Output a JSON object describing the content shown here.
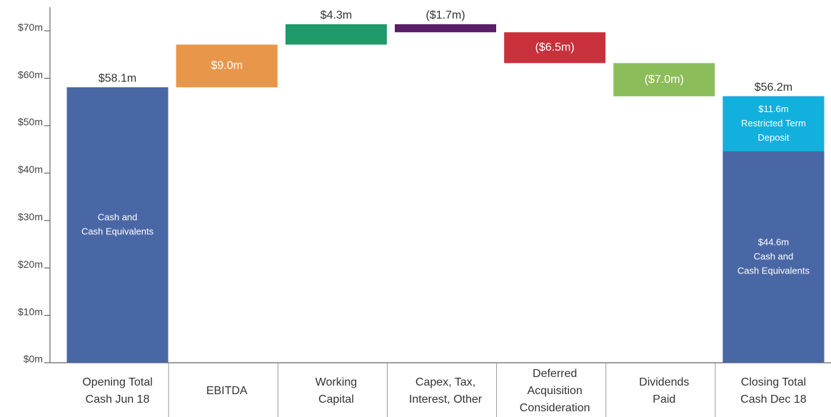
{
  "chart_data": {
    "type": "waterfall",
    "categories": [
      [
        "Opening Total",
        "Cash Jun 18"
      ],
      [
        "EBITDA"
      ],
      [
        "Working",
        "Capital"
      ],
      [
        "Capex, Tax,",
        "Interest, Other"
      ],
      [
        "Deferred",
        "Acquisition",
        "Consideration"
      ],
      [
        "Dividends",
        "Paid"
      ],
      [
        "Closing Total",
        "Cash Dec 18"
      ]
    ],
    "measure": [
      "total",
      "relative",
      "relative",
      "relative",
      "relative",
      "relative",
      "total"
    ],
    "values": [
      58.1,
      9.0,
      4.3,
      -1.7,
      -6.5,
      -7.0,
      56.2
    ],
    "value_labels": [
      "$58.1m",
      "$9.0m",
      "$4.3m",
      "($1.7m)",
      "($6.5m)",
      "($7.0m)",
      "$56.2m"
    ],
    "colors": [
      "#4a67a5",
      "#e8964a",
      "#1e9a6b",
      "#5a1e68",
      "#c8313b",
      "#8cbd5b",
      "#4a67a5"
    ],
    "opening_label_lines": [
      "Cash and",
      "Cash Equivalents"
    ],
    "closing_stack": [
      {
        "value": 44.6,
        "value_label": "$44.6m",
        "label_lines": [
          "Cash and",
          "Cash Equivalents"
        ],
        "color": "#4a67a5"
      },
      {
        "value": 11.6,
        "value_label": "$11.6m",
        "label_lines": [
          "Restricted Term",
          "Deposit"
        ],
        "color": "#12b0dd"
      }
    ],
    "ylim": [
      0,
      75
    ],
    "yticks": [
      {
        "value": 0,
        "label": "$0m"
      },
      {
        "value": 10,
        "label": "$10m"
      },
      {
        "value": 20,
        "label": "$20m"
      },
      {
        "value": 30,
        "label": "$30m"
      },
      {
        "value": 40,
        "label": "$40m"
      },
      {
        "value": 50,
        "label": "$50m"
      },
      {
        "value": 60,
        "label": "$60m"
      },
      {
        "value": 70,
        "label": "$70m"
      }
    ]
  }
}
